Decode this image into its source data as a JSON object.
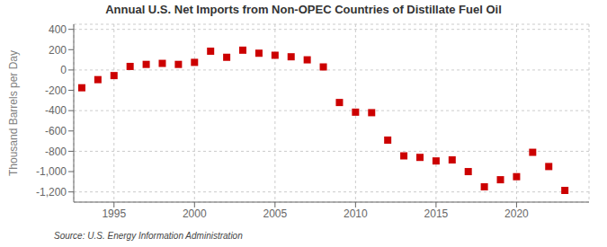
{
  "chart_data": {
    "type": "scatter",
    "title": "Annual U.S. Net Imports from Non-OPEC Countries of Distillate Fuel Oil",
    "ylabel": "Thousand Barrels per Day",
    "annotations": [
      "Source: U.S. Energy Information Administration"
    ],
    "x": [
      1993,
      1994,
      1995,
      1996,
      1997,
      1998,
      1999,
      2000,
      2001,
      2002,
      2003,
      2004,
      2005,
      2006,
      2007,
      2008,
      2009,
      2010,
      2011,
      2012,
      2013,
      2014,
      2015,
      2016,
      2017,
      2018,
      2019,
      2020,
      2021,
      2022,
      2023
    ],
    "values": [
      -175,
      -95,
      -55,
      35,
      55,
      65,
      55,
      75,
      185,
      125,
      195,
      165,
      145,
      130,
      100,
      30,
      -320,
      -415,
      -420,
      -690,
      -845,
      -860,
      -895,
      -885,
      -1000,
      -1150,
      -1080,
      -1050,
      -810,
      -950,
      -1185
    ],
    "color": "#cc0000",
    "marker": "square",
    "grid": true,
    "xlim": [
      1992.5,
      2024.5
    ],
    "xticks": [
      1995,
      2000,
      2005,
      2010,
      2015,
      2020
    ],
    "ylim": [
      -1300,
      450
    ],
    "yticks": [
      {
        "value": -1200,
        "label": "-1,200"
      },
      {
        "value": -1000,
        "label": "-1,000"
      },
      -800,
      -600,
      -400,
      -200,
      0,
      200,
      400
    ]
  }
}
